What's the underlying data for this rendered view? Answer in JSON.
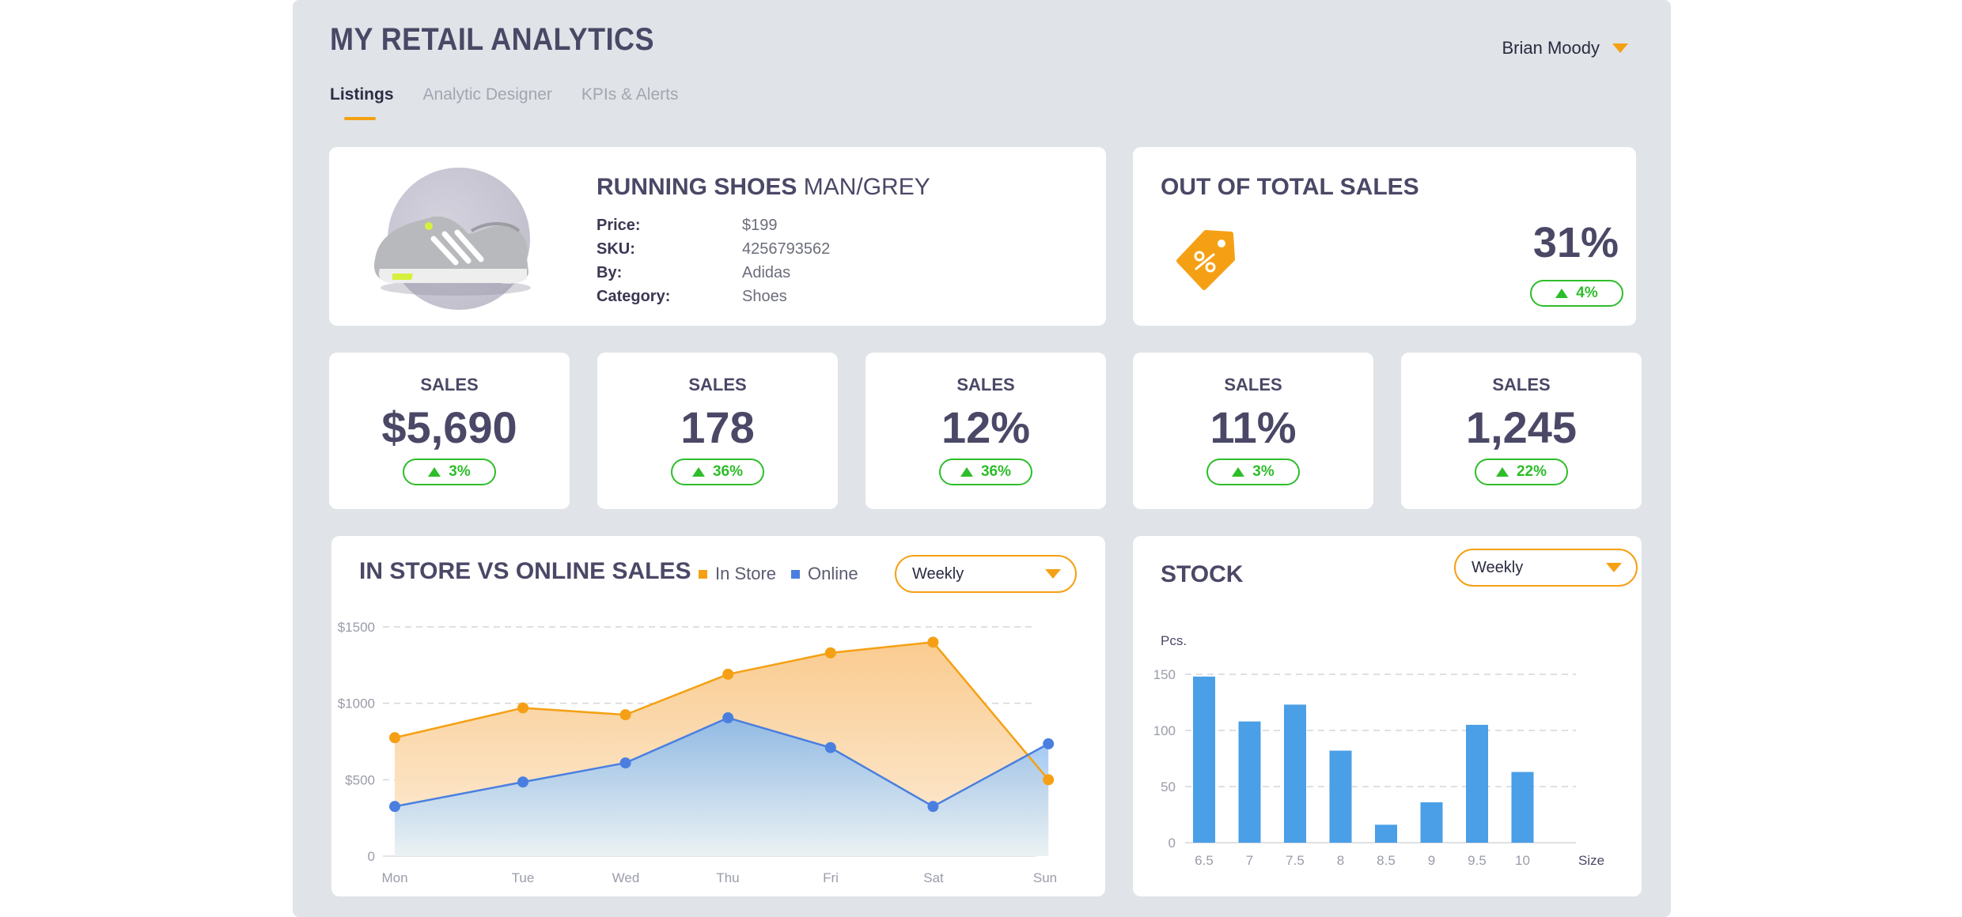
{
  "app": {
    "title": "MY RETAIL ANALYTICS",
    "user": "Brian Moody"
  },
  "tabs": [
    {
      "label": "Listings",
      "active": true
    },
    {
      "label": "Analytic Designer",
      "active": false
    },
    {
      "label": "KPIs & Alerts",
      "active": false
    }
  ],
  "product": {
    "title_bold": "RUNNING SHOES",
    "title_rest": "MAN/GREY",
    "specs": [
      {
        "key": "Price:",
        "value": "$199"
      },
      {
        "key": "SKU:",
        "value": "4256793562"
      },
      {
        "key": "By:",
        "value": "Adidas"
      },
      {
        "key": "Category:",
        "value": "Shoes"
      }
    ]
  },
  "total_sales": {
    "title": "OUT OF TOTAL SALES",
    "value": "31%",
    "delta": "4%",
    "icon": "price-tag-icon"
  },
  "kpis": [
    {
      "label": "SALES",
      "value": "$5,690",
      "delta": "3%"
    },
    {
      "label": "SALES",
      "value": "178",
      "delta": "36%"
    },
    {
      "label": "SALES",
      "value": "12%",
      "delta": "36%"
    },
    {
      "label": "SALES",
      "value": "11%",
      "delta": "3%"
    },
    {
      "label": "SALES",
      "value": "1,245",
      "delta": "22%"
    }
  ],
  "colors": {
    "accent": "#f5a014",
    "online": "#4a7fe0",
    "positive": "#2ebd2a",
    "bar": "#4a9fe6",
    "text": "#4a4866"
  },
  "chart_data": [
    {
      "type": "area",
      "title": "IN STORE VS ONLINE SALES",
      "period": "Weekly",
      "categories": [
        "Mon",
        "Tue",
        "Wed",
        "Thu",
        "Fri",
        "Sat",
        "Sun"
      ],
      "y_ticks": [
        "0",
        "$500",
        "$1000",
        "$1500"
      ],
      "ylim": [
        0,
        1500
      ],
      "series": [
        {
          "name": "In Store",
          "x": [
            0,
            1,
            1.8,
            2.6,
            3.4,
            4.2,
            5.1
          ],
          "values": [
            775,
            970,
            925,
            1190,
            1330,
            1400,
            500
          ]
        },
        {
          "name": "Online",
          "x": [
            0,
            1,
            1.8,
            2.6,
            3.4,
            4.2,
            5.1
          ],
          "values": [
            325,
            485,
            610,
            905,
            710,
            325,
            735
          ]
        }
      ],
      "grid": true,
      "legend_position": "top"
    },
    {
      "type": "bar",
      "title": "STOCK",
      "period": "Weekly",
      "ylabel": "Pcs.",
      "xlabel": "Size",
      "categories": [
        "6.5",
        "7",
        "7.5",
        "8",
        "8.5",
        "9",
        "9.5",
        "10"
      ],
      "values": [
        148,
        108,
        123,
        82,
        16,
        36,
        105,
        63
      ],
      "y_ticks": [
        "0",
        "50",
        "100",
        "150"
      ],
      "ylim": [
        0,
        150
      ],
      "grid": true
    }
  ]
}
